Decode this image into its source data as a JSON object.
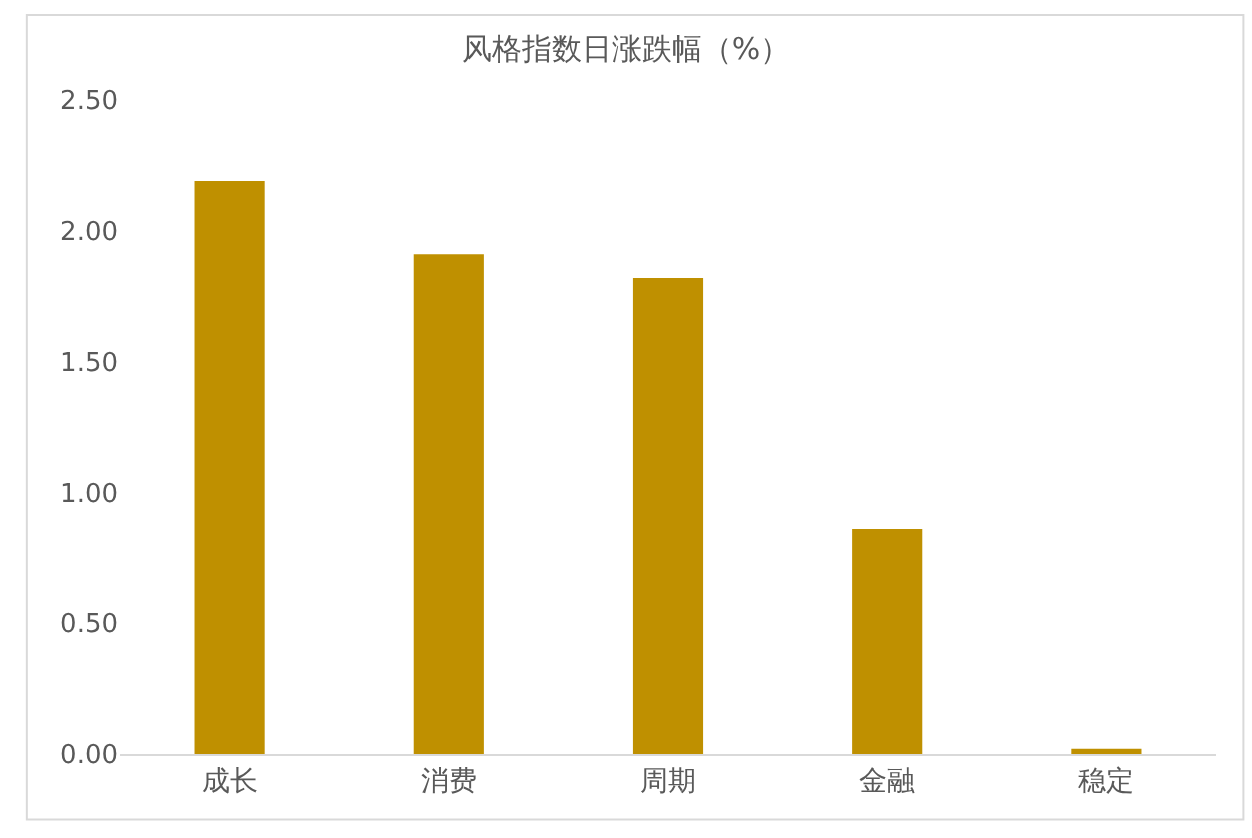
{
  "chart_data": {
    "type": "bar",
    "title": "风格指数日涨跌幅（%）",
    "categories": [
      "成长",
      "消费",
      "周期",
      "金融",
      "稳定"
    ],
    "values": [
      2.19,
      1.91,
      1.82,
      0.86,
      0.02
    ],
    "color": "#bf9000",
    "ylim": [
      0,
      2.5
    ],
    "yticks": [
      {
        "value": 0,
        "label": "0.00"
      },
      {
        "value": 0.5,
        "label": "0.50"
      },
      {
        "value": 1,
        "label": "1.00"
      },
      {
        "value": 1.5,
        "label": "1.50"
      },
      {
        "value": 2,
        "label": "2.00"
      },
      {
        "value": 2.5,
        "label": "2.50"
      }
    ],
    "grid": false
  }
}
